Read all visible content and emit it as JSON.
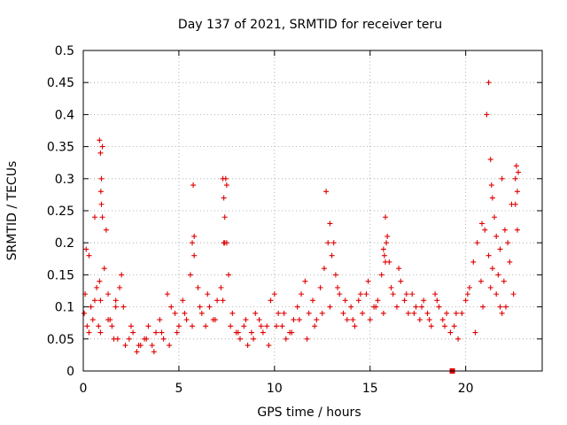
{
  "chart_data": {
    "type": "scatter",
    "title": "Day 137 of 2021, SRMTID for receiver teru",
    "xlabel": "GPS time / hours",
    "ylabel": "SRMTID / TECUs",
    "xlim": [
      0,
      24
    ],
    "ylim": [
      0,
      0.5
    ],
    "xticks": [
      0,
      5,
      10,
      15,
      20
    ],
    "xtick_labels": [
      "0",
      "5",
      "10",
      "15",
      "20"
    ],
    "yticks": [
      0,
      0.05,
      0.1,
      0.15,
      0.2,
      0.25,
      0.3,
      0.35,
      0.4,
      0.45,
      0.5
    ],
    "ytick_labels": [
      "0",
      "0.05",
      "0.1",
      "0.15",
      "0.2",
      "0.25",
      "0.3",
      "0.35",
      "0.4",
      "0.45",
      "0.5"
    ],
    "grid": true,
    "marker": "+",
    "marker_color": "#e00000",
    "series": [
      {
        "name": "SRMTID",
        "x": [
          0.05,
          0.1,
          0.15,
          0.2,
          0.3,
          0.4,
          0.5,
          0.6,
          0.7,
          0.8,
          0.85,
          0.9,
          0.95,
          1.0,
          1.1,
          1.2,
          1.3,
          1.4,
          1.5,
          1.6,
          1.7,
          1.8,
          1.9,
          2.0,
          2.2,
          2.4,
          2.6,
          2.8,
          3.0,
          3.2,
          3.4,
          3.6,
          3.8,
          4.0,
          4.2,
          4.4,
          4.6,
          4.8,
          5.0,
          5.2,
          5.4,
          5.6,
          5.7,
          5.8,
          6.0,
          6.2,
          6.4,
          6.6,
          6.8,
          7.0,
          7.2,
          7.3,
          7.35,
          7.4,
          7.5,
          7.6,
          7.8,
          8.0,
          8.2,
          8.4,
          8.6,
          8.8,
          9.0,
          9.2,
          9.4,
          9.6,
          9.8,
          10.0,
          10.2,
          10.4,
          10.6,
          10.8,
          11.0,
          11.2,
          11.4,
          11.6,
          11.8,
          12.0,
          12.2,
          12.4,
          12.6,
          12.8,
          13.0,
          13.2,
          13.4,
          13.6,
          13.8,
          14.0,
          14.2,
          14.4,
          14.6,
          14.8,
          15.0,
          15.2,
          15.4,
          15.6,
          15.7,
          15.8,
          15.9,
          16.0,
          16.2,
          16.4,
          16.6,
          16.8,
          17.0,
          17.2,
          17.4,
          17.6,
          17.8,
          18.0,
          18.2,
          18.4,
          18.6,
          18.8,
          19.0,
          19.2,
          19.3,
          19.4,
          19.6,
          19.8,
          20.0,
          20.2,
          20.4,
          20.6,
          20.8,
          21.0,
          21.2,
          21.4,
          21.6,
          21.8,
          21.9,
          22.0,
          22.2,
          22.4,
          22.6,
          22.7,
          0.3,
          0.6,
          0.9,
          1.3,
          1.7,
          2.1,
          2.5,
          2.9,
          3.3,
          3.7,
          4.1,
          4.5,
          4.9,
          5.3,
          5.7,
          6.1,
          6.5,
          6.9,
          7.3,
          7.7,
          8.1,
          8.5,
          8.9,
          9.3,
          9.7,
          10.1,
          10.5,
          10.9,
          11.3,
          11.7,
          12.1,
          12.5,
          12.9,
          13.3,
          13.7,
          14.1,
          14.5,
          14.9,
          15.3,
          15.7,
          16.1,
          16.5,
          16.9,
          17.3,
          17.7,
          18.1,
          18.5,
          18.9,
          19.5,
          20.1,
          20.5,
          20.9,
          21.3,
          21.7,
          22.1,
          22.5,
          0.85,
          0.9,
          0.92,
          0.95,
          1.0,
          5.75,
          5.8,
          7.35,
          7.4,
          7.45,
          7.5,
          12.7,
          12.9,
          13.1,
          15.75,
          15.8,
          15.85,
          20.85,
          21.1,
          21.2,
          21.3,
          21.35,
          21.4,
          21.5,
          21.6,
          21.8,
          21.9,
          22.05,
          22.3,
          22.6,
          22.65,
          22.7,
          22.75
        ],
        "y": [
          0.09,
          0.12,
          0.19,
          0.07,
          0.06,
          0.1,
          0.08,
          0.11,
          0.13,
          0.07,
          0.36,
          0.34,
          0.3,
          0.24,
          0.16,
          0.22,
          0.12,
          0.08,
          0.07,
          0.05,
          0.1,
          0.05,
          0.13,
          0.15,
          0.04,
          0.05,
          0.06,
          0.03,
          0.04,
          0.05,
          0.07,
          0.04,
          0.06,
          0.08,
          0.05,
          0.12,
          0.1,
          0.09,
          0.07,
          0.11,
          0.08,
          0.15,
          0.2,
          0.18,
          0.13,
          0.09,
          0.07,
          0.1,
          0.08,
          0.11,
          0.13,
          0.3,
          0.27,
          0.24,
          0.2,
          0.15,
          0.09,
          0.06,
          0.05,
          0.07,
          0.04,
          0.06,
          0.09,
          0.08,
          0.06,
          0.07,
          0.11,
          0.12,
          0.09,
          0.07,
          0.05,
          0.06,
          0.08,
          0.1,
          0.12,
          0.14,
          0.09,
          0.11,
          0.08,
          0.13,
          0.16,
          0.2,
          0.18,
          0.15,
          0.12,
          0.09,
          0.08,
          0.1,
          0.07,
          0.11,
          0.09,
          0.12,
          0.08,
          0.1,
          0.11,
          0.15,
          0.19,
          0.24,
          0.21,
          0.17,
          0.12,
          0.1,
          0.14,
          0.11,
          0.09,
          0.12,
          0.1,
          0.08,
          0.11,
          0.09,
          0.07,
          0.12,
          0.1,
          0.08,
          0.09,
          0.06,
          0.0,
          0.07,
          0.05,
          0.09,
          0.11,
          0.13,
          0.17,
          0.2,
          0.14,
          0.22,
          0.18,
          0.16,
          0.12,
          0.1,
          0.09,
          0.14,
          0.2,
          0.26,
          0.3,
          0.22,
          0.18,
          0.24,
          0.06,
          0.08,
          0.11,
          0.1,
          0.07,
          0.04,
          0.05,
          0.03,
          0.06,
          0.04,
          0.06,
          0.09,
          0.07,
          0.1,
          0.12,
          0.08,
          0.11,
          0.07,
          0.06,
          0.08,
          0.05,
          0.07,
          0.04,
          0.07,
          0.09,
          0.06,
          0.08,
          0.05,
          0.07,
          0.09,
          0.1,
          0.13,
          0.11,
          0.08,
          0.12,
          0.14,
          0.1,
          0.09,
          0.13,
          0.16,
          0.12,
          0.09,
          0.1,
          0.08,
          0.11,
          0.07,
          0.09,
          0.12,
          0.06,
          0.1,
          0.13,
          0.15,
          0.1,
          0.12,
          0.14,
          0.11,
          0.28,
          0.26,
          0.35,
          0.29,
          0.21,
          0.2,
          0.2,
          0.3,
          0.29,
          0.28,
          0.23,
          0.2,
          0.18,
          0.17,
          0.2,
          0.23,
          0.4,
          0.45,
          0.33,
          0.29,
          0.27,
          0.24,
          0.21,
          0.19,
          0.3,
          0.22,
          0.17,
          0.26,
          0.32,
          0.28,
          0.31
        ]
      }
    ],
    "extra_marker": {
      "x": 19.3,
      "y": 0.0,
      "shape": "square"
    }
  }
}
